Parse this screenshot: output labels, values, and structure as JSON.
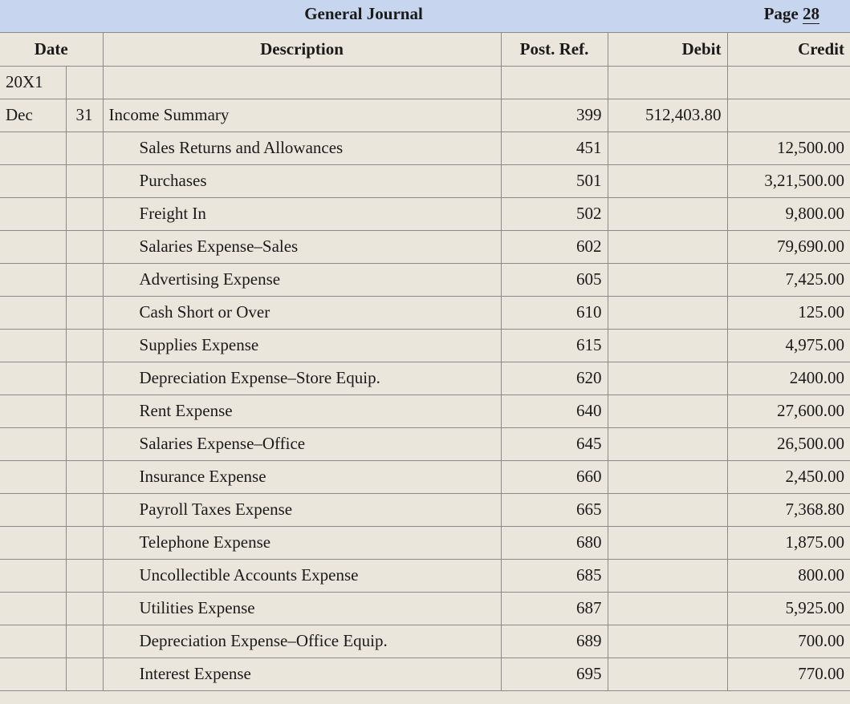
{
  "journal": {
    "title": "General Journal",
    "page_label": "Page",
    "page_number": "28"
  },
  "columns": {
    "date": "Date",
    "description": "Description",
    "post_ref": "Post. Ref.",
    "debit": "Debit",
    "credit": "Credit"
  },
  "year": "20X1",
  "rows": [
    {
      "month": "Dec",
      "day": "31",
      "description": "Income Summary",
      "indent": false,
      "post_ref": "399",
      "debit": "512,403.80",
      "credit": ""
    },
    {
      "month": "",
      "day": "",
      "description": "Sales Returns and Allowances",
      "indent": true,
      "post_ref": "451",
      "debit": "",
      "credit": "12,500.00"
    },
    {
      "month": "",
      "day": "",
      "description": "Purchases",
      "indent": true,
      "post_ref": "501",
      "debit": "",
      "credit": "3,21,500.00"
    },
    {
      "month": "",
      "day": "",
      "description": "Freight In",
      "indent": true,
      "post_ref": "502",
      "debit": "",
      "credit": "9,800.00"
    },
    {
      "month": "",
      "day": "",
      "description": "Salaries Expense–Sales",
      "indent": true,
      "post_ref": "602",
      "debit": "",
      "credit": "79,690.00"
    },
    {
      "month": "",
      "day": "",
      "description": "Advertising Expense",
      "indent": true,
      "post_ref": "605",
      "debit": "",
      "credit": "7,425.00"
    },
    {
      "month": "",
      "day": "",
      "description": "Cash Short or Over",
      "indent": true,
      "post_ref": "610",
      "debit": "",
      "credit": "125.00"
    },
    {
      "month": "",
      "day": "",
      "description": "Supplies Expense",
      "indent": true,
      "post_ref": "615",
      "debit": "",
      "credit": "4,975.00"
    },
    {
      "month": "",
      "day": "",
      "description": "Depreciation Expense–Store Equip.",
      "indent": true,
      "post_ref": "620",
      "debit": "",
      "credit": "2400.00"
    },
    {
      "month": "",
      "day": "",
      "description": "Rent Expense",
      "indent": true,
      "post_ref": "640",
      "debit": "",
      "credit": "27,600.00"
    },
    {
      "month": "",
      "day": "",
      "description": "Salaries Expense–Office",
      "indent": true,
      "post_ref": "645",
      "debit": "",
      "credit": "26,500.00"
    },
    {
      "month": "",
      "day": "",
      "description": "Insurance Expense",
      "indent": true,
      "post_ref": "660",
      "debit": "",
      "credit": "2,450.00"
    },
    {
      "month": "",
      "day": "",
      "description": "Payroll Taxes Expense",
      "indent": true,
      "post_ref": "665",
      "debit": "",
      "credit": "7,368.80"
    },
    {
      "month": "",
      "day": "",
      "description": "Telephone Expense",
      "indent": true,
      "post_ref": "680",
      "debit": "",
      "credit": "1,875.00"
    },
    {
      "month": "",
      "day": "",
      "description": "Uncollectible Accounts Expense",
      "indent": true,
      "post_ref": "685",
      "debit": "",
      "credit": "800.00"
    },
    {
      "month": "",
      "day": "",
      "description": "Utilities Expense",
      "indent": true,
      "post_ref": "687",
      "debit": "",
      "credit": "5,925.00"
    },
    {
      "month": "",
      "day": "",
      "description": "Depreciation Expense–Office Equip.",
      "indent": true,
      "post_ref": "689",
      "debit": "",
      "credit": "700.00"
    },
    {
      "month": "",
      "day": "",
      "description": "Interest Expense",
      "indent": true,
      "post_ref": "695",
      "debit": "",
      "credit": "770.00"
    }
  ]
}
